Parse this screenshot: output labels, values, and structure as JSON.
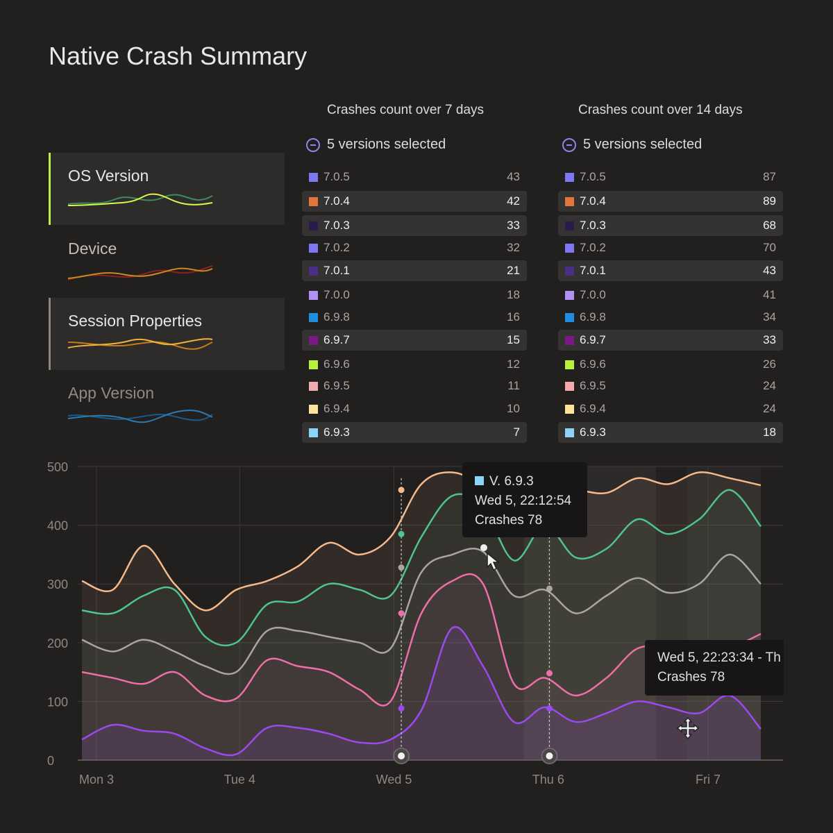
{
  "page": {
    "title": "Native Crash Summary"
  },
  "sidebar": {
    "items": [
      {
        "label": "OS Version",
        "active": true,
        "accent": "#b8ee4b"
      },
      {
        "label": "Device",
        "active": false
      },
      {
        "label": "Session Properties",
        "active": true,
        "accent": "#8a8684"
      },
      {
        "label": "App Version",
        "active": false
      }
    ]
  },
  "columns": [
    {
      "title": "Crashes count over 7 days",
      "selection_label": "5 versions selected",
      "rows": [
        {
          "version": "7.0.5",
          "count": "43",
          "color": "#7d77f2",
          "highlighted": false
        },
        {
          "version": "7.0.4",
          "count": "42",
          "color": "#e0763a",
          "highlighted": true
        },
        {
          "version": "7.0.3",
          "count": "33",
          "color": "#2a1a4e",
          "highlighted": true
        },
        {
          "version": "7.0.2",
          "count": "32",
          "color": "#7d77f2",
          "highlighted": false
        },
        {
          "version": "7.0.1",
          "count": "21",
          "color": "#4b2f86",
          "highlighted": true
        },
        {
          "version": "7.0.0",
          "count": "18",
          "color": "#b18ff3",
          "highlighted": false
        },
        {
          "version": "6.9.8",
          "count": "16",
          "color": "#1f8de0",
          "highlighted": false
        },
        {
          "version": "6.9.7",
          "count": "15",
          "color": "#7b1a86",
          "highlighted": true
        },
        {
          "version": "6.9.6",
          "count": "12",
          "color": "#b6f23a",
          "highlighted": false
        },
        {
          "version": "6.9.5",
          "count": "11",
          "color": "#f4a9ab",
          "highlighted": false
        },
        {
          "version": "6.9.4",
          "count": "10",
          "color": "#fde29b",
          "highlighted": false
        },
        {
          "version": "6.9.3",
          "count": "7",
          "color": "#8dd2f7",
          "highlighted": true
        }
      ]
    },
    {
      "title": "Crashes count over 14 days",
      "selection_label": "5 versions selected",
      "rows": [
        {
          "version": "7.0.5",
          "count": "87",
          "color": "#7d77f2",
          "highlighted": false
        },
        {
          "version": "7.0.4",
          "count": "89",
          "color": "#e0763a",
          "highlighted": true
        },
        {
          "version": "7.0.3",
          "count": "68",
          "color": "#2a1a4e",
          "highlighted": true
        },
        {
          "version": "7.0.2",
          "count": "70",
          "color": "#7d77f2",
          "highlighted": false
        },
        {
          "version": "7.0.1",
          "count": "43",
          "color": "#4b2f86",
          "highlighted": true
        },
        {
          "version": "7.0.0",
          "count": "41",
          "color": "#b18ff3",
          "highlighted": false
        },
        {
          "version": "6.9.8",
          "count": "34",
          "color": "#1f8de0",
          "highlighted": false
        },
        {
          "version": "6.9.7",
          "count": "33",
          "color": "#7b1a86",
          "highlighted": true
        },
        {
          "version": "6.9.6",
          "count": "26",
          "color": "#b6f23a",
          "highlighted": false
        },
        {
          "version": "6.9.5",
          "count": "24",
          "color": "#f4a9ab",
          "highlighted": false
        },
        {
          "version": "6.9.4",
          "count": "24",
          "color": "#fde29b",
          "highlighted": false
        },
        {
          "version": "6.9.3",
          "count": "18",
          "color": "#8dd2f7",
          "highlighted": true
        }
      ]
    }
  ],
  "tooltips": [
    {
      "swatch_color": "#8dd2f7",
      "version": "V. 6.9.3",
      "time": "Wed 5, 22:12:54",
      "crashes": "Crashes 78"
    },
    {
      "time": "Wed 5, 22:23:34 - Th",
      "crashes": "Crashes 78"
    }
  ],
  "chart_data": {
    "type": "area",
    "ylim": [
      0,
      500
    ],
    "yticks": [
      "0",
      "100",
      "200",
      "300",
      "400",
      "500"
    ],
    "xlabels": [
      "Mon 3",
      "Tue 4",
      "Wed 5",
      "Thu 6",
      "Fri 7"
    ],
    "x": [
      3.0,
      3.2,
      3.4,
      3.6,
      3.8,
      4.0,
      4.2,
      4.4,
      4.6,
      4.8,
      5.0,
      5.2,
      5.4,
      5.6,
      5.8,
      6.0,
      6.2,
      6.4,
      6.6,
      6.8,
      7.0,
      7.2,
      7.4
    ],
    "series": [
      {
        "color": "#f5b98a",
        "values": [
          305,
          290,
          365,
          300,
          255,
          290,
          305,
          330,
          370,
          350,
          380,
          470,
          490,
          465,
          410,
          460,
          460,
          455,
          480,
          470,
          490,
          480,
          468
        ]
      },
      {
        "color": "#4fc48f",
        "values": [
          255,
          250,
          280,
          290,
          210,
          200,
          265,
          270,
          300,
          290,
          280,
          380,
          450,
          430,
          340,
          400,
          345,
          360,
          410,
          385,
          410,
          460,
          398
        ]
      },
      {
        "color": "#a9a5a3",
        "values": [
          205,
          185,
          205,
          185,
          160,
          150,
          220,
          220,
          210,
          200,
          190,
          320,
          350,
          355,
          280,
          290,
          250,
          280,
          310,
          285,
          300,
          350,
          300
        ]
      },
      {
        "color": "#ee6fa7",
        "values": [
          150,
          140,
          130,
          150,
          110,
          105,
          170,
          160,
          150,
          120,
          100,
          250,
          305,
          300,
          130,
          140,
          110,
          140,
          190,
          190,
          175,
          190,
          215
        ]
      },
      {
        "color": "#9b4af0",
        "values": [
          35,
          60,
          50,
          45,
          20,
          10,
          55,
          55,
          45,
          30,
          35,
          85,
          225,
          160,
          65,
          90,
          65,
          80,
          100,
          90,
          80,
          110,
          53
        ]
      }
    ],
    "markers": [
      {
        "x": 5.07,
        "values": [
          460,
          385,
          328,
          250,
          88
        ]
      },
      {
        "x": 6.03,
        "values": [
          385,
          292,
          148,
          88
        ]
      }
    ]
  }
}
